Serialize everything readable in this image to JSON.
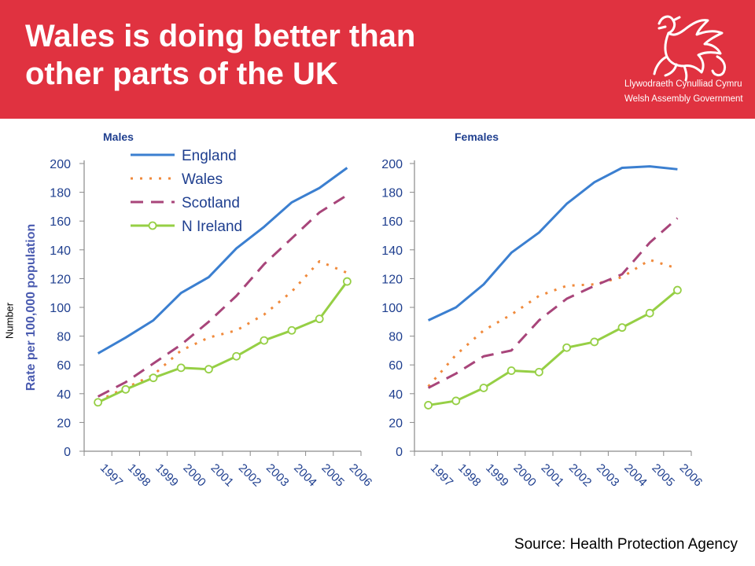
{
  "title": "Wales is doing better than other parts of the UK",
  "title_lines": [
    "Wales is doing better than",
    "other parts of the UK"
  ],
  "logo": {
    "icon": "welsh-dragon-icon",
    "line1": "Llywodraeth Cynulliad Cymru",
    "line2": "Welsh Assembly Government"
  },
  "side_label": "Number",
  "source": "Source: Health Protection Agency",
  "colors": {
    "banner": "#e03240",
    "England": "#3b7fd0",
    "Wales": "#f08a3c",
    "Scotland": "#a8457a",
    "N Ireland": "#96cf45",
    "axis_text": "#1f3f8f"
  },
  "chart_data": [
    {
      "type": "line",
      "panel_label": "Males",
      "ylabel": "Rate per 100,000 population",
      "xlabel": "",
      "ylim": [
        0,
        200
      ],
      "yticks": [
        0,
        20,
        40,
        60,
        80,
        100,
        120,
        140,
        160,
        180,
        200
      ],
      "categories": [
        "1997",
        "1998",
        "1999",
        "2000",
        "2001",
        "2002",
        "2003",
        "2004",
        "2005",
        "2006"
      ],
      "grid": false,
      "legend": "top-left",
      "series": [
        {
          "name": "England",
          "style": "solid",
          "values": [
            68,
            79,
            91,
            110,
            121,
            141,
            156,
            173,
            183,
            197
          ]
        },
        {
          "name": "Wales",
          "style": "dotted",
          "values": [
            35,
            44,
            53,
            70,
            79,
            84,
            95,
            111,
            132,
            124
          ]
        },
        {
          "name": "Scotland",
          "style": "dashed",
          "values": [
            38,
            48,
            61,
            74,
            90,
            108,
            130,
            148,
            166,
            178
          ]
        },
        {
          "name": "N Ireland",
          "style": "solid-markers",
          "values": [
            34,
            43,
            51,
            58,
            57,
            66,
            77,
            84,
            92,
            118
          ]
        }
      ]
    },
    {
      "type": "line",
      "panel_label": "Females",
      "ylabel": "",
      "xlabel": "",
      "ylim": [
        0,
        200
      ],
      "yticks": [
        0,
        20,
        40,
        60,
        80,
        100,
        120,
        140,
        160,
        180,
        200
      ],
      "categories": [
        "1997",
        "1998",
        "1999",
        "2000",
        "2001",
        "2002",
        "2003",
        "2004",
        "2005",
        "2006"
      ],
      "grid": false,
      "legend": "none",
      "series": [
        {
          "name": "England",
          "style": "solid",
          "values": [
            91,
            100,
            116,
            138,
            152,
            172,
            187,
            197,
            198,
            196
          ]
        },
        {
          "name": "Wales",
          "style": "dotted",
          "values": [
            45,
            67,
            84,
            95,
            108,
            115,
            116,
            121,
            133,
            127
          ]
        },
        {
          "name": "Scotland",
          "style": "dashed",
          "values": [
            44,
            54,
            66,
            70,
            91,
            106,
            115,
            123,
            145,
            162
          ]
        },
        {
          "name": "N Ireland",
          "style": "solid-markers",
          "values": [
            32,
            35,
            44,
            56,
            55,
            72,
            76,
            86,
            96,
            112
          ]
        }
      ]
    }
  ]
}
